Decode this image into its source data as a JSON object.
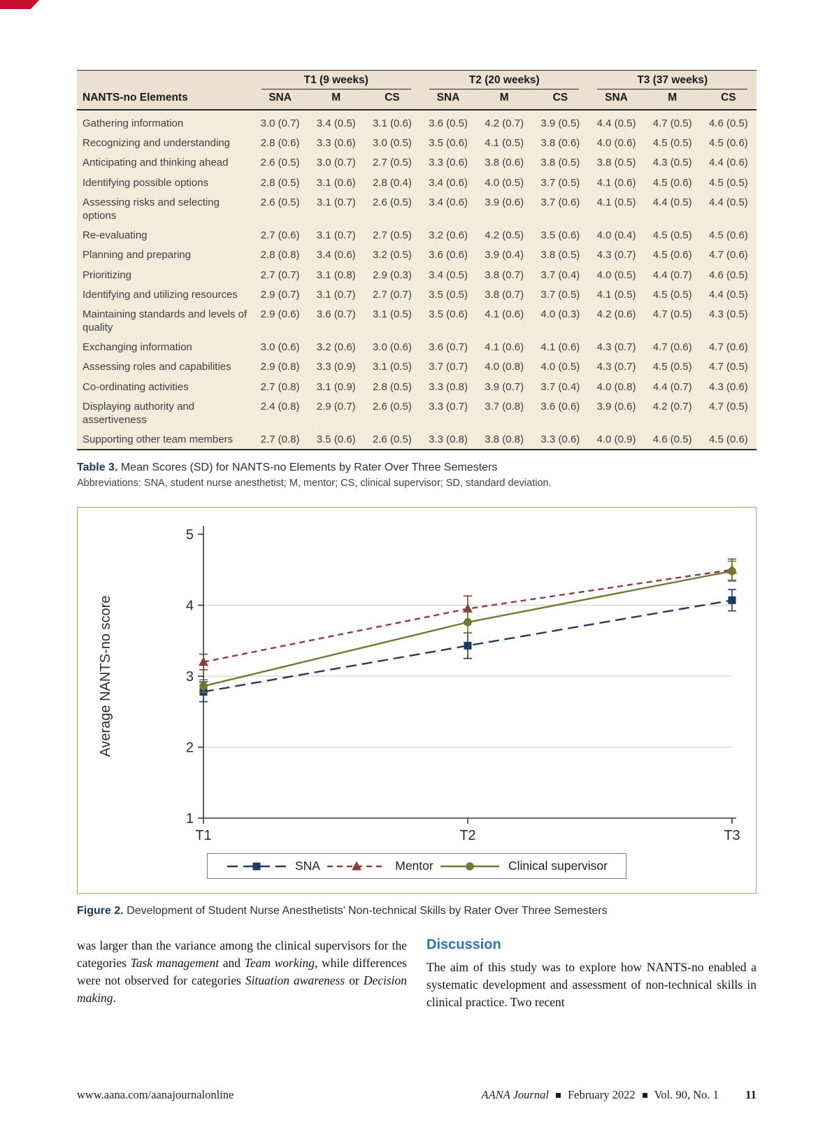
{
  "theme": {
    "corner_red": "#c8102e",
    "table_bg": "#f5ebdb",
    "table_header_bg": "#ece1d1",
    "caption_navy": "#17375e",
    "heading_blue": "#2e74b5",
    "figure_border": "#c09a6a"
  },
  "table": {
    "row_header": "NANTS-no Elements",
    "col_groups": [
      "T1 (9 weeks)",
      "T2 (20 weeks)",
      "T3 (37 weeks)"
    ],
    "sub_headers": [
      "SNA",
      "M",
      "CS"
    ],
    "rows": [
      {
        "label": "Gathering information",
        "values": [
          "3.0 (0.7)",
          "3.4 (0.5)",
          "3.1 (0.6)",
          "3.6 (0.5)",
          "4.2 (0.7)",
          "3.9 (0.5)",
          "4.4 (0.5)",
          "4.7 (0.5)",
          "4.6 (0.5)"
        ]
      },
      {
        "label": "Recognizing and understanding",
        "values": [
          "2.8 (0.6)",
          "3.3 (0.6)",
          "3.0 (0.5)",
          "3.5 (0.6)",
          "4.1 (0.5)",
          "3.8 (0.6)",
          "4.0 (0.6)",
          "4.5 (0.5)",
          "4.5 (0.6)"
        ]
      },
      {
        "label": "Anticipating and thinking ahead",
        "values": [
          "2.6 (0.5)",
          "3.0 (0.7)",
          "2.7 (0.5)",
          "3.3 (0.6)",
          "3.8 (0.6)",
          "3.8 (0.5)",
          "3.8 (0.5)",
          "4.3 (0.5)",
          "4.4 (0.6)"
        ]
      },
      {
        "label": "Identifying possible options",
        "values": [
          "2.8 (0.5)",
          "3.1 (0.6)",
          "2.8 (0.4)",
          "3.4 (0.6)",
          "4.0 (0.5)",
          "3.7 (0.5)",
          "4.1 (0.6)",
          "4.5 (0.6)",
          "4.5 (0.5)"
        ]
      },
      {
        "label": "Assessing risks and selecting options",
        "values": [
          "2.6 (0.5)",
          "3.1 (0.7)",
          "2.6 (0.5)",
          "3.4 (0.6)",
          "3.9 (0.6)",
          "3.7 (0.6)",
          "4.1 (0.5)",
          "4.4 (0.5)",
          "4.4 (0.5)"
        ]
      },
      {
        "label": "Re-evaluating",
        "values": [
          "2.7 (0.6)",
          "3.1 (0.7)",
          "2.7 (0.5)",
          "3.2 (0.6)",
          "4.2 (0.5)",
          "3.5 (0.6)",
          "4.0 (0.4)",
          "4.5 (0.5)",
          "4.5 (0.6)"
        ]
      },
      {
        "label": "Planning and preparing",
        "values": [
          "2.8 (0.8)",
          "3.4 (0.6)",
          "3.2 (0.5)",
          "3.6 (0.6)",
          "3.9 (0.4)",
          "3.8 (0.5)",
          "4.3 (0.7)",
          "4.5 (0.6)",
          "4.7 (0.6)"
        ]
      },
      {
        "label": "Prioritizing",
        "values": [
          "2.7 (0.7)",
          "3.1 (0.8)",
          "2.9 (0.3)",
          "3.4 (0.5)",
          "3.8 (0.7)",
          "3.7 (0.4)",
          "4.0 (0.5)",
          "4.4 (0.7)",
          "4.6 (0.5)"
        ]
      },
      {
        "label": "Identifying and utilizing resources",
        "values": [
          "2.9 (0.7)",
          "3.1 (0.7)",
          "2.7 (0.7)",
          "3.5 (0.5)",
          "3.8 (0.7)",
          "3.7 (0.5)",
          "4.1 (0.5)",
          "4.5 (0.5)",
          "4.4 (0.5)"
        ]
      },
      {
        "label": "Maintaining standards and levels of quality",
        "values": [
          "2.9 (0.6)",
          "3.6 (0.7)",
          "3.1 (0.5)",
          "3.5 (0.6)",
          "4.1 (0.6)",
          "4.0 (0.3)",
          "4.2 (0.6)",
          "4.7 (0.5)",
          "4.3 (0.5)"
        ]
      },
      {
        "label": "Exchanging information",
        "values": [
          "3.0 (0.6)",
          "3.2 (0.6)",
          "3.0 (0.6)",
          "3.6 (0.7)",
          "4.1 (0.6)",
          "4.1 (0.6)",
          "4.3 (0.7)",
          "4.7 (0.6)",
          "4.7 (0.6)"
        ]
      },
      {
        "label": "Assessing roles and capabilities",
        "values": [
          "2.9 (0.8)",
          "3.3 (0.9)",
          "3.1 (0.5)",
          "3.7 (0.7)",
          "4.0 (0.8)",
          "4.0 (0.5)",
          "4.3 (0.7)",
          "4.5 (0.5)",
          "4.7 (0.5)"
        ]
      },
      {
        "label": "Co-ordinating activities",
        "values": [
          "2.7 (0.8)",
          "3.1 (0.9)",
          "2.8 (0.5)",
          "3.3 (0.8)",
          "3.9 (0.7)",
          "3.7 (0.4)",
          "4.0 (0.8)",
          "4.4 (0.7)",
          "4.3 (0.6)"
        ]
      },
      {
        "label": "Displaying authority and assertiveness",
        "values": [
          "2.4 (0.8)",
          "2.9 (0.7)",
          "2.6 (0.5)",
          "3.3 (0.7)",
          "3.7 (0.8)",
          "3.6 (0.6)",
          "3.9 (0.6)",
          "4.2 (0.7)",
          "4.7 (0.5)"
        ]
      },
      {
        "label": "Supporting other team members",
        "values": [
          "2.7 (0.8)",
          "3.5 (0.6)",
          "2.6 (0.5)",
          "3.3 (0.8)",
          "3.8 (0.8)",
          "3.3 (0.6)",
          "4.0 (0.9)",
          "4.6 (0.5)",
          "4.5 (0.6)"
        ]
      }
    ],
    "caption_bold": "Table 3.",
    "caption_rest": "Mean Scores (SD) for NANTS-no Elements by Rater Over Three Semesters",
    "abbreviations": "Abbreviations: SNA, student nurse anesthetist; M, mentor; CS, clinical supervisor; SD, standard deviation."
  },
  "chart_data": {
    "type": "line",
    "x": [
      "T1",
      "T2",
      "T3"
    ],
    "series": [
      {
        "name": "SNA",
        "values": [
          2.78,
          3.43,
          4.07
        ],
        "errors": [
          0.14,
          0.18,
          0.15
        ],
        "color": "#1f3b63",
        "dash": "15,8",
        "marker": "square"
      },
      {
        "name": "Mentor",
        "values": [
          3.2,
          3.95,
          4.5
        ],
        "errors": [
          0.11,
          0.18,
          0.15
        ],
        "color": "#8f3a3b",
        "dash": "8,6",
        "marker": "triangle"
      },
      {
        "name": "Clinical supervisor",
        "values": [
          2.86,
          3.76,
          4.48
        ],
        "errors": [
          0.09,
          0.15,
          0.14
        ],
        "color": "#6f7a33",
        "dash": "",
        "marker": "circle"
      }
    ],
    "title": "",
    "xlabel": "",
    "ylabel": "Average NANTS-no score",
    "ylim": [
      1,
      5
    ],
    "yticks": [
      1,
      2,
      3,
      4,
      5
    ],
    "gridlines": [
      2,
      3,
      4
    ],
    "grid": "horizontal-light",
    "legend_position": "bottom-boxed"
  },
  "figure": {
    "caption_bold": "Figure 2.",
    "caption_rest": "Development of Student Nurse Anesthetists’ Non-technical Skills by Rater Over Three Semesters"
  },
  "body": {
    "left_paragraph_segments": [
      {
        "t": "was larger than the variance among the clinical supervisors for the categories "
      },
      {
        "t": "Task management",
        "i": true
      },
      {
        "t": " and "
      },
      {
        "t": "Team working",
        "i": true
      },
      {
        "t": ", while differences were not observed for categories "
      },
      {
        "t": "Situation awareness",
        "i": true
      },
      {
        "t": " or "
      },
      {
        "t": "Decision making",
        "i": true
      },
      {
        "t": "."
      }
    ],
    "discussion_title": "Discussion",
    "discussion_text": "The aim of this study was to explore how NANTS-no enabled a systematic development and assessment of non-technical skills in clinical practice. Two recent"
  },
  "footer": {
    "url": "www.aana.com/aanajournalonline",
    "journal": "AANA Journal",
    "issue": "February 2022",
    "volume": "Vol. 90, No. 1",
    "page_number": "11"
  }
}
